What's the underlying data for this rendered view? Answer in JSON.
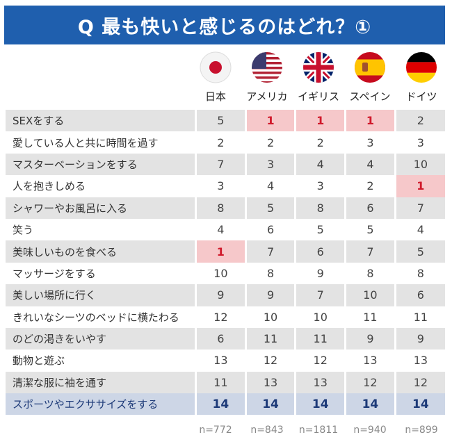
{
  "title": "Q 最も快いと感じるのはどれ？①",
  "countries": [
    {
      "name": "日本",
      "n": "n=772",
      "flag": "japan-flag-icon"
    },
    {
      "name": "アメリカ",
      "n": "n=843",
      "flag": "usa-flag-icon"
    },
    {
      "name": "イギリス",
      "n": "n=1811",
      "flag": "uk-flag-icon"
    },
    {
      "name": "スペイン",
      "n": "n=940",
      "flag": "spain-flag-icon"
    },
    {
      "name": "ドイツ",
      "n": "n=899",
      "flag": "germany-flag-icon"
    }
  ],
  "colors": {
    "header": "#1f5fae",
    "highlight_bg": "#f6c8ca",
    "highlight_text": "#d0192b",
    "last_row_bg": "#cdd6e6",
    "last_row_text": "#1d3a78"
  },
  "chart_data": {
    "type": "table",
    "title": "Q 最も快いと感じるのはどれ？①",
    "columns": [
      "日本",
      "アメリカ",
      "イギリス",
      "スペイン",
      "ドイツ"
    ],
    "rows": [
      {
        "label": "SEXをする",
        "values": [
          5,
          1,
          1,
          1,
          2
        ]
      },
      {
        "label": "愛している人と共に時間を過す",
        "values": [
          2,
          2,
          2,
          3,
          3
        ]
      },
      {
        "label": "マスターベーションをする",
        "values": [
          7,
          3,
          4,
          4,
          10
        ]
      },
      {
        "label": "人を抱きしめる",
        "values": [
          3,
          4,
          3,
          2,
          1
        ]
      },
      {
        "label": "シャワーやお風呂に入る",
        "values": [
          8,
          5,
          8,
          6,
          7
        ]
      },
      {
        "label": "笑う",
        "values": [
          4,
          6,
          5,
          5,
          4
        ]
      },
      {
        "label": "美味しいものを食べる",
        "values": [
          1,
          7,
          6,
          7,
          5
        ]
      },
      {
        "label": "マッサージをする",
        "values": [
          10,
          8,
          9,
          8,
          8
        ]
      },
      {
        "label": "美しい場所に行く",
        "values": [
          9,
          9,
          7,
          10,
          6
        ]
      },
      {
        "label": "きれいなシーツのベッドに横たわる",
        "values": [
          12,
          10,
          10,
          11,
          11
        ]
      },
      {
        "label": "のどの渇きをいやす",
        "values": [
          6,
          11,
          11,
          9,
          9
        ]
      },
      {
        "label": "動物と遊ぶ",
        "values": [
          13,
          12,
          12,
          13,
          13
        ]
      },
      {
        "label": "清潔な服に袖を通す",
        "values": [
          11,
          13,
          13,
          12,
          12
        ]
      },
      {
        "label": "スポーツやエクササイズをする",
        "values": [
          14,
          14,
          14,
          14,
          14
        ]
      }
    ],
    "sample_sizes": [
      "n=772",
      "n=843",
      "n=1811",
      "n=940",
      "n=899"
    ]
  }
}
